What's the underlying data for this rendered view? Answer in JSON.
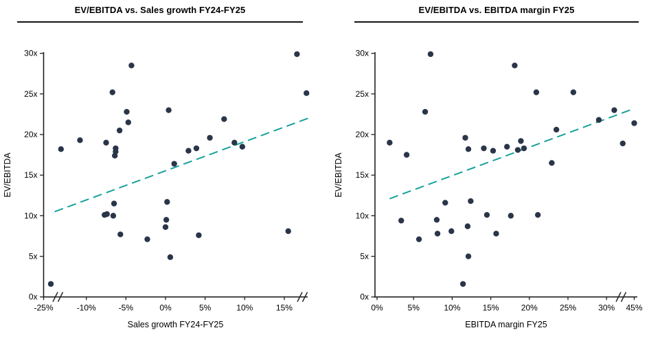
{
  "colors": {
    "point": "#2a3549",
    "trend": "#16a09c",
    "axis": "#1f1f1f",
    "text": "#000000"
  },
  "chart_data": [
    {
      "type": "scatter",
      "title": "EV/EBITDA vs. Sales growth FY24-FY25",
      "xlabel": "Sales growth FY24-FY25",
      "ylabel": "EV/EBITDA",
      "x_tick_labels": [
        "-25%",
        "-10%",
        "-5%",
        "0%",
        "5%",
        "10%",
        "15%"
      ],
      "x_tick_values": [
        -25,
        -10,
        -5,
        0,
        5,
        10,
        15
      ],
      "y_tick_labels": [
        "0x",
        "5x",
        "10x",
        "15x",
        "20x",
        "25x",
        "30x"
      ],
      "y_tick_values": [
        0,
        5,
        10,
        15,
        20,
        25,
        30
      ],
      "ylim": [
        0,
        30
      ],
      "axis_breaks": "x axis has break marks after the -25% origin and at the right end",
      "grid": false,
      "legend": false,
      "points": [
        [
          -24,
          1.6
        ],
        [
          -13.2,
          18.2
        ],
        [
          -10.8,
          19.3
        ],
        [
          -7.7,
          10.1
        ],
        [
          -7.5,
          19.0
        ],
        [
          -7.4,
          10.2
        ],
        [
          -6.7,
          25.2
        ],
        [
          -6.6,
          10.0
        ],
        [
          -6.5,
          11.5
        ],
        [
          -6.3,
          18.3
        ],
        [
          -6.3,
          17.9
        ],
        [
          -6.4,
          17.4
        ],
        [
          -5.8,
          20.5
        ],
        [
          -5.7,
          7.7
        ],
        [
          -4.9,
          22.8
        ],
        [
          -4.7,
          21.5
        ],
        [
          -4.3,
          28.5
        ],
        [
          -2.3,
          7.1
        ],
        [
          0.0,
          8.6
        ],
        [
          0.1,
          9.5
        ],
        [
          0.2,
          11.7
        ],
        [
          0.4,
          23.0
        ],
        [
          0.6,
          4.9
        ],
        [
          1.1,
          16.4
        ],
        [
          2.9,
          18.0
        ],
        [
          3.9,
          18.3
        ],
        [
          4.2,
          7.6
        ],
        [
          5.6,
          19.6
        ],
        [
          7.4,
          21.9
        ],
        [
          8.7,
          19.0
        ],
        [
          9.7,
          18.5
        ],
        [
          15.5,
          8.1
        ],
        [
          16.6,
          29.9
        ],
        [
          17.8,
          25.1
        ]
      ],
      "trend_line": {
        "style": "dashed",
        "x1": -14,
        "y1": 10.5,
        "x2": 18,
        "y2": 22.0
      }
    },
    {
      "type": "scatter",
      "title": "EV/EBITDA vs. EBITDA margin FY25",
      "xlabel": "EBITDA margin FY25",
      "ylabel": "EV/EBITDA",
      "x_tick_labels": [
        "0%",
        "5%",
        "10%",
        "15%",
        "20%",
        "25%",
        "30%",
        "45%"
      ],
      "x_tick_values": [
        0,
        5,
        10,
        15,
        20,
        25,
        30,
        45
      ],
      "y_tick_labels": [
        "0x",
        "5x",
        "10x",
        "15x",
        "20x",
        "25x",
        "30x"
      ],
      "y_tick_values": [
        0,
        5,
        10,
        15,
        20,
        25,
        30
      ],
      "ylim": [
        0,
        30
      ],
      "axis_breaks": "x axis has a break mark between 30% and 45%",
      "grid": false,
      "legend": false,
      "points": [
        [
          1.9,
          19.0
        ],
        [
          3.4,
          9.4
        ],
        [
          4.1,
          17.5
        ],
        [
          5.7,
          7.1
        ],
        [
          6.5,
          22.8
        ],
        [
          7.2,
          29.9
        ],
        [
          8.0,
          9.5
        ],
        [
          8.1,
          7.8
        ],
        [
          9.1,
          11.6
        ],
        [
          9.9,
          8.1
        ],
        [
          11.4,
          1.6
        ],
        [
          11.7,
          19.6
        ],
        [
          12.0,
          8.7
        ],
        [
          12.1,
          5.0
        ],
        [
          12.1,
          18.2
        ],
        [
          12.4,
          11.8
        ],
        [
          14.1,
          18.3
        ],
        [
          14.5,
          10.1
        ],
        [
          15.3,
          18.0
        ],
        [
          15.7,
          7.8
        ],
        [
          17.1,
          18.5
        ],
        [
          17.6,
          10.0
        ],
        [
          18.1,
          28.5
        ],
        [
          18.5,
          18.1
        ],
        [
          18.9,
          19.2
        ],
        [
          19.3,
          18.3
        ],
        [
          20.9,
          25.2
        ],
        [
          21.1,
          10.1
        ],
        [
          22.9,
          16.5
        ],
        [
          23.5,
          20.6
        ],
        [
          25.7,
          25.2
        ],
        [
          29.0,
          21.8
        ],
        [
          31.0,
          23.0
        ],
        [
          32.1,
          18.9
        ],
        [
          45.0,
          21.4
        ]
      ],
      "trend_line": {
        "style": "dashed",
        "x1": 1.9,
        "y1": 12.1,
        "x2": 33.7,
        "y2": 23.2
      }
    }
  ]
}
